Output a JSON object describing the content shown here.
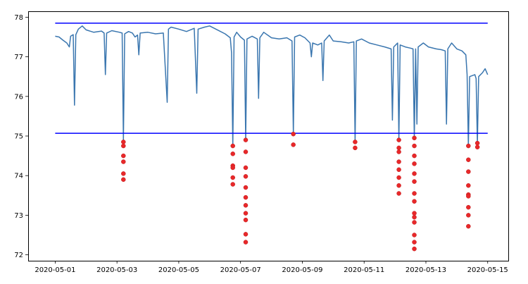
{
  "chart_data": {
    "type": "line",
    "title": "",
    "xlabel": "",
    "ylabel": "",
    "xlim": [
      "2020-04-30T03:00",
      "2020-05-15T16:00"
    ],
    "ylim": [
      71.85,
      78.15
    ],
    "grid": false,
    "x_tick_labels": [
      "2020-05-01",
      "2020-05-03",
      "2020-05-05",
      "2020-05-07",
      "2020-05-09",
      "2020-05-11",
      "2020-05-13",
      "2020-05-15"
    ],
    "x_ticks": [
      "2020-05-01",
      "2020-05-03",
      "2020-05-05",
      "2020-05-07",
      "2020-05-09",
      "2020-05-11",
      "2020-05-13",
      "2020-05-15"
    ],
    "y_tick_labels": [
      "72",
      "73",
      "74",
      "75",
      "76",
      "77",
      "78"
    ],
    "y_ticks": [
      72,
      73,
      74,
      75,
      76,
      77,
      78
    ],
    "series": [
      {
        "kind": "line",
        "color": "#3a76af",
        "points": [
          [
            "2020-05-01T00:00",
            77.52
          ],
          [
            "2020-05-01T03:00",
            77.5
          ],
          [
            "2020-05-01T06:00",
            77.42
          ],
          [
            "2020-05-01T09:00",
            77.35
          ],
          [
            "2020-05-01T11:00",
            77.25
          ],
          [
            "2020-05-01T12:00",
            77.52
          ],
          [
            "2020-05-01T14:00",
            77.56
          ],
          [
            "2020-05-01T15:00",
            75.78
          ],
          [
            "2020-05-01T16:00",
            77.56
          ],
          [
            "2020-05-01T18:00",
            77.7
          ],
          [
            "2020-05-01T21:00",
            77.78
          ],
          [
            "2020-05-02T00:00",
            77.68
          ],
          [
            "2020-05-02T06:00",
            77.62
          ],
          [
            "2020-05-02T12:00",
            77.65
          ],
          [
            "2020-05-02T14:00",
            77.6
          ],
          [
            "2020-05-02T15:00",
            76.55
          ],
          [
            "2020-05-02T16:00",
            77.6
          ],
          [
            "2020-05-02T20:00",
            77.66
          ],
          [
            "2020-05-03T02:00",
            77.62
          ],
          [
            "2020-05-03T04:00",
            77.6
          ],
          [
            "2020-05-03T05:00",
            74.9
          ],
          [
            "2020-05-03T06:00",
            77.58
          ],
          [
            "2020-05-03T09:00",
            77.64
          ],
          [
            "2020-05-03T12:00",
            77.6
          ],
          [
            "2020-05-03T14:00",
            77.5
          ],
          [
            "2020-05-03T16:00",
            77.55
          ],
          [
            "2020-05-03T17:00",
            77.05
          ],
          [
            "2020-05-03T18:00",
            77.6
          ],
          [
            "2020-05-04T00:00",
            77.62
          ],
          [
            "2020-05-04T06:00",
            77.58
          ],
          [
            "2020-05-04T12:00",
            77.6
          ],
          [
            "2020-05-04T15:00",
            75.85
          ],
          [
            "2020-05-04T16:00",
            77.7
          ],
          [
            "2020-05-04T18:00",
            77.75
          ],
          [
            "2020-05-05T00:00",
            77.7
          ],
          [
            "2020-05-05T06:00",
            77.64
          ],
          [
            "2020-05-05T12:00",
            77.72
          ],
          [
            "2020-05-05T14:00",
            76.08
          ],
          [
            "2020-05-05T15:00",
            77.7
          ],
          [
            "2020-05-05T20:00",
            77.75
          ],
          [
            "2020-05-06T00:00",
            77.78
          ],
          [
            "2020-05-06T06:00",
            77.68
          ],
          [
            "2020-05-06T12:00",
            77.58
          ],
          [
            "2020-05-06T16:00",
            77.48
          ],
          [
            "2020-05-06T17:00",
            77.1
          ],
          [
            "2020-05-06T18:00",
            74.75
          ],
          [
            "2020-05-06T19:00",
            77.5
          ],
          [
            "2020-05-06T21:00",
            77.62
          ],
          [
            "2020-05-07T00:00",
            77.5
          ],
          [
            "2020-05-07T03:00",
            77.42
          ],
          [
            "2020-05-07T04:00",
            74.9
          ],
          [
            "2020-05-07T05:00",
            77.45
          ],
          [
            "2020-05-07T09:00",
            77.52
          ],
          [
            "2020-05-07T13:00",
            77.45
          ],
          [
            "2020-05-07T14:00",
            75.95
          ],
          [
            "2020-05-07T15:00",
            77.48
          ],
          [
            "2020-05-07T18:00",
            77.62
          ],
          [
            "2020-05-08T00:00",
            77.48
          ],
          [
            "2020-05-08T06:00",
            77.45
          ],
          [
            "2020-05-08T12:00",
            77.48
          ],
          [
            "2020-05-08T16:00",
            77.4
          ],
          [
            "2020-05-08T17:00",
            75.05
          ],
          [
            "2020-05-08T18:00",
            77.5
          ],
          [
            "2020-05-08T22:00",
            77.55
          ],
          [
            "2020-05-09T02:00",
            77.48
          ],
          [
            "2020-05-09T06:00",
            77.35
          ],
          [
            "2020-05-09T07:00",
            77.0
          ],
          [
            "2020-05-09T08:00",
            77.35
          ],
          [
            "2020-05-09T12:00",
            77.3
          ],
          [
            "2020-05-09T15:00",
            77.35
          ],
          [
            "2020-05-09T16:00",
            76.4
          ],
          [
            "2020-05-09T17:00",
            77.4
          ],
          [
            "2020-05-09T21:00",
            77.55
          ],
          [
            "2020-05-10T00:00",
            77.4
          ],
          [
            "2020-05-10T06:00",
            77.38
          ],
          [
            "2020-05-10T12:00",
            77.35
          ],
          [
            "2020-05-10T16:00",
            77.38
          ],
          [
            "2020-05-10T17:00",
            74.85
          ],
          [
            "2020-05-10T18:00",
            77.4
          ],
          [
            "2020-05-10T22:00",
            77.45
          ],
          [
            "2020-05-11T04:00",
            77.35
          ],
          [
            "2020-05-11T10:00",
            77.3
          ],
          [
            "2020-05-11T16:00",
            77.25
          ],
          [
            "2020-05-11T21:00",
            77.2
          ],
          [
            "2020-05-11T22:00",
            75.4
          ],
          [
            "2020-05-11T23:00",
            77.25
          ],
          [
            "2020-05-12T02:00",
            77.35
          ],
          [
            "2020-05-12T03:00",
            74.9
          ],
          [
            "2020-05-12T04:00",
            77.3
          ],
          [
            "2020-05-12T08:00",
            77.25
          ],
          [
            "2020-05-12T12:00",
            77.22
          ],
          [
            "2020-05-12T14:00",
            77.2
          ],
          [
            "2020-05-12T15:00",
            74.95
          ],
          [
            "2020-05-12T16:00",
            77.2
          ],
          [
            "2020-05-12T17:00",
            75.3
          ],
          [
            "2020-05-12T18:00",
            77.25
          ],
          [
            "2020-05-12T22:00",
            77.35
          ],
          [
            "2020-05-13T02:00",
            77.25
          ],
          [
            "2020-05-13T08:00",
            77.2
          ],
          [
            "2020-05-13T12:00",
            77.18
          ],
          [
            "2020-05-13T15:00",
            77.15
          ],
          [
            "2020-05-13T16:00",
            75.3
          ],
          [
            "2020-05-13T17:00",
            77.2
          ],
          [
            "2020-05-13T20:00",
            77.35
          ],
          [
            "2020-05-14T00:00",
            77.2
          ],
          [
            "2020-05-14T04:00",
            77.15
          ],
          [
            "2020-05-14T07:00",
            77.05
          ],
          [
            "2020-05-14T08:00",
            76.55
          ],
          [
            "2020-05-14T09:00",
            74.75
          ],
          [
            "2020-05-14T10:00",
            76.5
          ],
          [
            "2020-05-14T14:00",
            76.55
          ],
          [
            "2020-05-14T15:00",
            76.45
          ],
          [
            "2020-05-14T16:00",
            74.8
          ],
          [
            "2020-05-14T17:00",
            76.5
          ],
          [
            "2020-05-14T20:00",
            76.6
          ],
          [
            "2020-05-14T22:00",
            76.7
          ],
          [
            "2020-05-15T00:00",
            76.55
          ]
        ]
      },
      {
        "kind": "hline",
        "color": "#0000ff",
        "y": 77.85,
        "x_from": "2020-05-01T00:00",
        "x_to": "2020-05-15T00:00"
      },
      {
        "kind": "hline",
        "color": "#0000ff",
        "y": 75.07,
        "x_from": "2020-05-01T00:00",
        "x_to": "2020-05-15T00:00"
      },
      {
        "kind": "scatter",
        "color": "#e8282a",
        "points": [
          [
            "2020-05-03T05:00",
            74.85
          ],
          [
            "2020-05-03T05:00",
            74.75
          ],
          [
            "2020-05-03T05:00",
            74.5
          ],
          [
            "2020-05-03T05:00",
            74.35
          ],
          [
            "2020-05-03T05:00",
            74.05
          ],
          [
            "2020-05-03T05:00",
            73.9
          ],
          [
            "2020-05-06T18:00",
            74.75
          ],
          [
            "2020-05-06T18:00",
            74.55
          ],
          [
            "2020-05-06T18:00",
            74.25
          ],
          [
            "2020-05-06T18:00",
            74.2
          ],
          [
            "2020-05-06T18:00",
            73.95
          ],
          [
            "2020-05-06T18:00",
            73.78
          ],
          [
            "2020-05-07T04:00",
            74.9
          ],
          [
            "2020-05-07T04:00",
            74.6
          ],
          [
            "2020-05-07T04:00",
            74.2
          ],
          [
            "2020-05-07T04:00",
            73.98
          ],
          [
            "2020-05-07T04:00",
            73.7
          ],
          [
            "2020-05-07T04:00",
            73.45
          ],
          [
            "2020-05-07T04:00",
            73.25
          ],
          [
            "2020-05-07T04:00",
            73.05
          ],
          [
            "2020-05-07T04:00",
            72.88
          ],
          [
            "2020-05-07T04:00",
            72.52
          ],
          [
            "2020-05-07T04:00",
            72.32
          ],
          [
            "2020-05-08T17:00",
            75.05
          ],
          [
            "2020-05-08T17:00",
            74.78
          ],
          [
            "2020-05-10T17:00",
            74.85
          ],
          [
            "2020-05-10T17:00",
            74.7
          ],
          [
            "2020-05-12T03:00",
            74.9
          ],
          [
            "2020-05-12T03:00",
            74.7
          ],
          [
            "2020-05-12T03:00",
            74.6
          ],
          [
            "2020-05-12T03:00",
            74.35
          ],
          [
            "2020-05-12T03:00",
            74.15
          ],
          [
            "2020-05-12T03:00",
            73.95
          ],
          [
            "2020-05-12T03:00",
            73.75
          ],
          [
            "2020-05-12T03:00",
            73.55
          ],
          [
            "2020-05-12T15:00",
            74.95
          ],
          [
            "2020-05-12T15:00",
            74.75
          ],
          [
            "2020-05-12T15:00",
            74.5
          ],
          [
            "2020-05-12T15:00",
            74.3
          ],
          [
            "2020-05-12T15:00",
            74.05
          ],
          [
            "2020-05-12T15:00",
            73.85
          ],
          [
            "2020-05-12T15:00",
            73.55
          ],
          [
            "2020-05-12T15:00",
            73.35
          ],
          [
            "2020-05-12T15:00",
            73.05
          ],
          [
            "2020-05-12T15:00",
            72.95
          ],
          [
            "2020-05-12T15:00",
            72.82
          ],
          [
            "2020-05-12T15:00",
            72.5
          ],
          [
            "2020-05-12T15:00",
            72.32
          ],
          [
            "2020-05-12T15:00",
            72.15
          ],
          [
            "2020-05-14T09:00",
            74.75
          ],
          [
            "2020-05-14T09:00",
            74.4
          ],
          [
            "2020-05-14T09:00",
            74.1
          ],
          [
            "2020-05-14T09:00",
            73.75
          ],
          [
            "2020-05-14T09:00",
            73.52
          ],
          [
            "2020-05-14T09:00",
            73.48
          ],
          [
            "2020-05-14T09:00",
            73.2
          ],
          [
            "2020-05-14T09:00",
            73.0
          ],
          [
            "2020-05-14T09:00",
            72.72
          ],
          [
            "2020-05-14T16:00",
            74.82
          ],
          [
            "2020-05-14T16:00",
            74.72
          ]
        ]
      }
    ]
  }
}
